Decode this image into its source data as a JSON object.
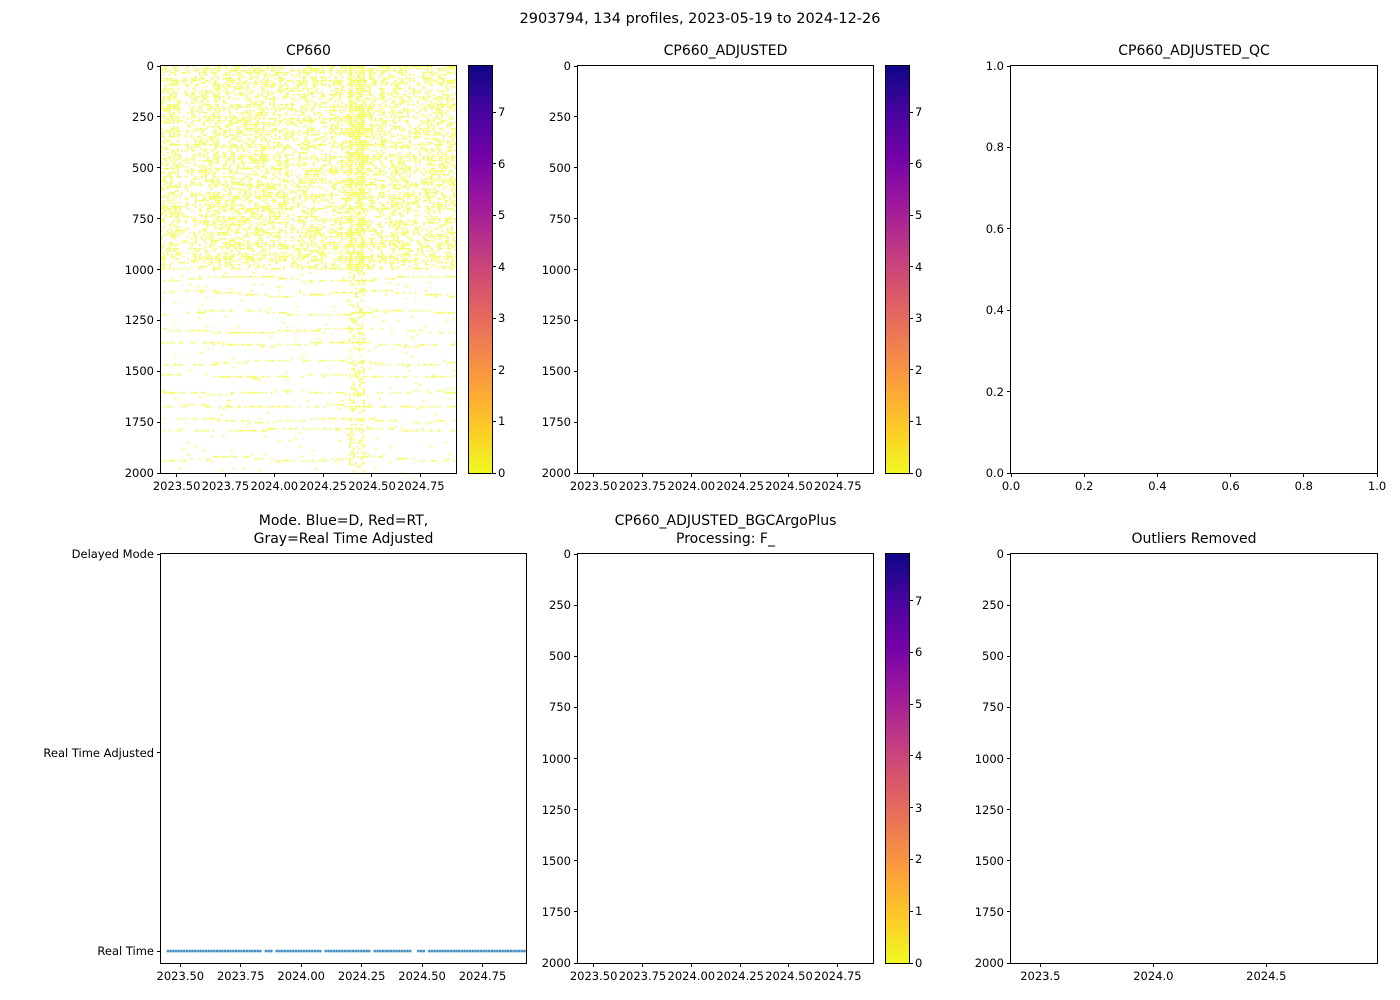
{
  "figure": {
    "title": "2903794, 134 profiles, 2023-05-19 to 2024-12-26",
    "background": "#ffffff"
  },
  "colormap_plasma_r": [
    "#f0f921",
    "#fdca26",
    "#fb9f3a",
    "#ed7953",
    "#d8576b",
    "#bd3786",
    "#9c179e",
    "#7201a8",
    "#46039f",
    "#0d0887"
  ],
  "chart_data": [
    {
      "id": "cp660",
      "type": "scatter",
      "title": "CP660",
      "has_data": true,
      "xlim": [
        2023.42,
        2024.93
      ],
      "xticks": [
        2023.5,
        2023.75,
        2024.0,
        2024.25,
        2024.5,
        2024.75
      ],
      "xtick_labels": [
        "2023.50",
        "2023.75",
        "2024.00",
        "2024.25",
        "2024.50",
        "2024.75"
      ],
      "ylim": [
        2000,
        0
      ],
      "yticks": [
        0,
        250,
        500,
        750,
        1000,
        1250,
        1500,
        1750,
        2000
      ],
      "ytick_labels": [
        "0",
        "250",
        "500",
        "750",
        "1000",
        "1250",
        "1500",
        "1750",
        "2000"
      ],
      "colorbar": {
        "vmin": 0,
        "vmax": 7.9,
        "cmap": "plasma_r",
        "ticks": [
          0,
          1,
          2,
          3,
          4,
          5,
          6,
          7
        ],
        "tick_labels": [
          "0",
          "1",
          "2",
          "3",
          "4",
          "5",
          "6",
          "7"
        ]
      },
      "speckle": {
        "seed": 42,
        "color": "#f0f921",
        "value_at_points": 0,
        "n_profiles": 134,
        "depth_range": [
          0,
          2000
        ],
        "dense_zone": {
          "depth_max": 1000,
          "density": 0.62
        },
        "sparse_zone": {
          "depth_min": 1000,
          "band_spacing": [
            45,
            95
          ],
          "band_amp": [
            4,
            16
          ],
          "band_density": 0.5,
          "background_density": 0.015
        },
        "dense_column": {
          "x_frac": 0.66,
          "width_frac": 0.05,
          "extra_density": 0.32
        }
      }
    },
    {
      "id": "cp660-adjusted",
      "type": "scatter",
      "title": "CP660_ADJUSTED",
      "has_data": false,
      "xlim": [
        2023.42,
        2024.93
      ],
      "xticks": [
        2023.5,
        2023.75,
        2024.0,
        2024.25,
        2024.5,
        2024.75
      ],
      "xtick_labels": [
        "2023.50",
        "2023.75",
        "2024.00",
        "2024.25",
        "2024.50",
        "2024.75"
      ],
      "ylim": [
        2000,
        0
      ],
      "yticks": [
        0,
        250,
        500,
        750,
        1000,
        1250,
        1500,
        1750,
        2000
      ],
      "ytick_labels": [
        "0",
        "250",
        "500",
        "750",
        "1000",
        "1250",
        "1500",
        "1750",
        "2000"
      ],
      "colorbar": {
        "vmin": 0,
        "vmax": 7.9,
        "cmap": "plasma_r",
        "ticks": [
          0,
          1,
          2,
          3,
          4,
          5,
          6,
          7
        ],
        "tick_labels": [
          "0",
          "1",
          "2",
          "3",
          "4",
          "5",
          "6",
          "7"
        ]
      }
    },
    {
      "id": "cp660-adjusted-qc",
      "type": "scatter",
      "title": "CP660_ADJUSTED_QC",
      "has_data": false,
      "xlim": [
        0,
        1
      ],
      "xticks": [
        0,
        0.2,
        0.4,
        0.6,
        0.8,
        1.0
      ],
      "xtick_labels": [
        "0.0",
        "0.2",
        "0.4",
        "0.6",
        "0.8",
        "1.0"
      ],
      "ylim": [
        0,
        1
      ],
      "yticks": [
        0,
        0.2,
        0.4,
        0.6,
        0.8,
        1.0
      ],
      "ytick_labels": [
        "0.0",
        "0.2",
        "0.4",
        "0.6",
        "0.8",
        "1.0"
      ]
    },
    {
      "id": "mode",
      "type": "line",
      "title": "Mode. Blue=D, Red=RT,\nGray=Real Time Adjusted",
      "has_data": true,
      "xlim": [
        2023.42,
        2024.93
      ],
      "xticks": [
        2023.5,
        2023.75,
        2024.0,
        2024.25,
        2024.5,
        2024.75
      ],
      "xtick_labels": [
        "2023.50",
        "2023.75",
        "2024.00",
        "2024.25",
        "2024.50",
        "2024.75"
      ],
      "ylim": [
        -0.06,
        2.0
      ],
      "yticks": [
        2,
        1,
        0
      ],
      "ytick_labels": [
        "Delayed Mode",
        "Real Time Adjusted",
        "Real Time"
      ],
      "series": [
        {
          "name": "mode-markers",
          "y_category": "Real Time",
          "y": 0,
          "color": "#1f77b4",
          "marker": "dot",
          "n_points": 134,
          "gap_probability": 0.07,
          "seed": 7
        }
      ]
    },
    {
      "id": "cp660-adjusted-bgcargoplus",
      "type": "scatter",
      "title": "CP660_ADJUSTED_BGCArgoPlus\nProcessing: F_",
      "has_data": false,
      "xlim": [
        2023.42,
        2024.93
      ],
      "xticks": [
        2023.5,
        2023.75,
        2024.0,
        2024.25,
        2024.5,
        2024.75
      ],
      "xtick_labels": [
        "2023.50",
        "2023.75",
        "2024.00",
        "2024.25",
        "2024.50",
        "2024.75"
      ],
      "ylim": [
        2000,
        0
      ],
      "yticks": [
        0,
        250,
        500,
        750,
        1000,
        1250,
        1500,
        1750,
        2000
      ],
      "ytick_labels": [
        "0",
        "250",
        "500",
        "750",
        "1000",
        "1250",
        "1500",
        "1750",
        "2000"
      ],
      "colorbar": {
        "vmin": 0,
        "vmax": 7.9,
        "cmap": "plasma_r",
        "ticks": [
          0,
          1,
          2,
          3,
          4,
          5,
          6,
          7
        ],
        "tick_labels": [
          "0",
          "1",
          "2",
          "3",
          "4",
          "5",
          "6",
          "7"
        ]
      }
    },
    {
      "id": "outliers-removed",
      "type": "scatter",
      "title": "Outliers Removed",
      "has_data": false,
      "xlim": [
        2023.37,
        2024.99
      ],
      "xticks": [
        2023.5,
        2024.0,
        2024.5
      ],
      "xtick_labels": [
        "2023.5",
        "2024.0",
        "2024.5"
      ],
      "ylim": [
        2000,
        0
      ],
      "yticks": [
        0,
        250,
        500,
        750,
        1000,
        1250,
        1500,
        1750,
        2000
      ],
      "ytick_labels": [
        "0",
        "250",
        "500",
        "750",
        "1000",
        "1250",
        "1500",
        "1750",
        "2000"
      ]
    }
  ]
}
